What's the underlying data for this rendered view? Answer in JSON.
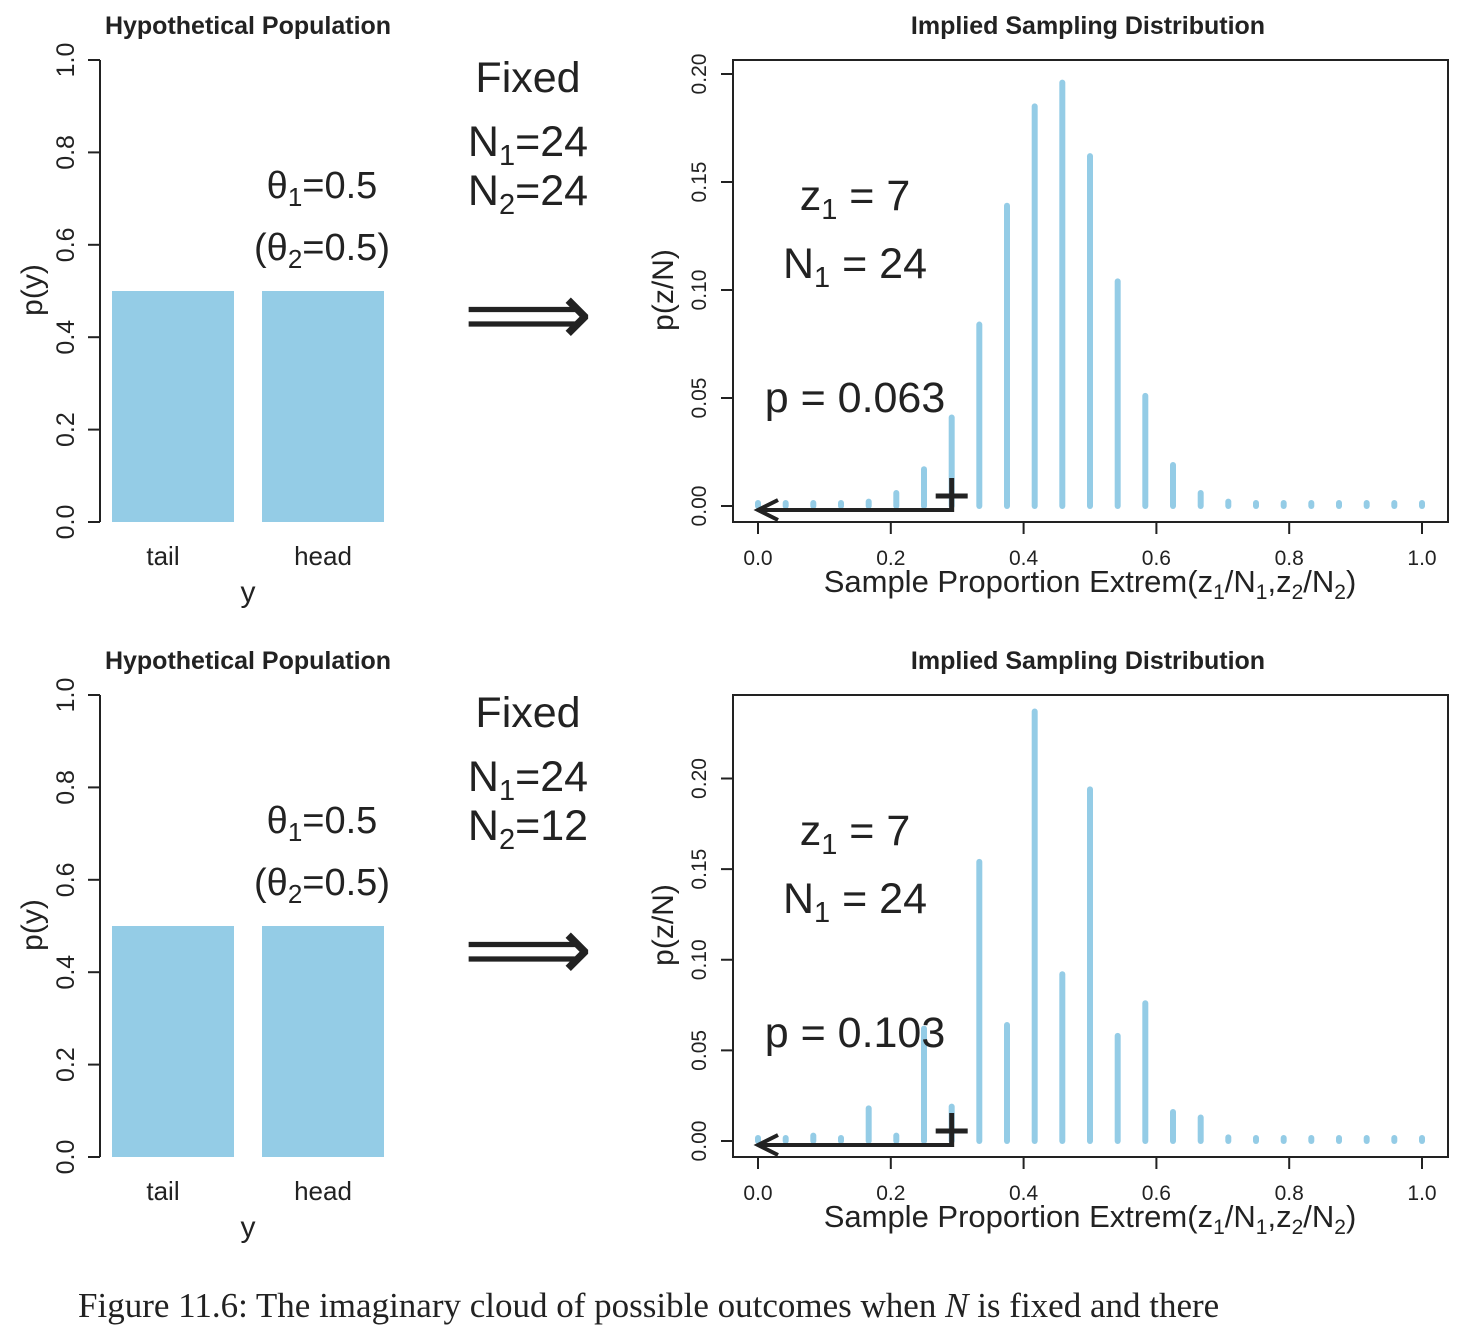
{
  "caption": {
    "prefix": "Figure 11.6:  The imaginary cloud of possible outcomes when ",
    "variable": "N",
    "suffix": " is fixed and there"
  },
  "colors": {
    "bar": "#94CCE6",
    "ink": "#222222"
  },
  "panels": [
    {
      "middle": {
        "fixed": "Fixed",
        "n1_base": "N",
        "n1_sub": "1",
        "n1_val": "=24",
        "n2_base": "N",
        "n2_sub": "2",
        "n2_val": "=24",
        "arrow": "⟹"
      },
      "annotation": {
        "z_base": "z",
        "z_sub": "1",
        "z_val": " = 7",
        "n_base": "N",
        "n_sub": "1",
        "n_val": " = 24",
        "p_text": "p = 0.063"
      }
    },
    {
      "middle": {
        "fixed": "Fixed",
        "n1_base": "N",
        "n1_sub": "1",
        "n1_val": "=24",
        "n2_base": "N",
        "n2_sub": "2",
        "n2_val": "=12",
        "arrow": "⟹"
      },
      "annotation": {
        "z_base": "z",
        "z_sub": "1",
        "z_val": " = 7",
        "n_base": "N",
        "n_sub": "1",
        "n_val": " = 24",
        "p_text": "p = 0.103"
      }
    }
  ],
  "chart_data": [
    {
      "type": "bar",
      "title": "Hypothetical Population",
      "xlabel": "y",
      "ylabel": "p(y)",
      "categories": [
        "tail",
        "head"
      ],
      "values": [
        0.5,
        0.5
      ],
      "ylim": [
        0,
        1
      ],
      "yticks": [
        "0.0",
        "0.2",
        "0.4",
        "0.6",
        "0.8",
        "1.0"
      ],
      "annotation_theta1": {
        "base": "θ",
        "sub": "1",
        "val": "=0.5"
      },
      "annotation_theta2": {
        "open": "(θ",
        "sub": "2",
        "val": "=0.5)"
      }
    },
    {
      "type": "bar",
      "title": "Implied Sampling Distribution",
      "xlabel": {
        "base": "Sample Proportion Extrem(z",
        "s1": "1",
        "m1": "/N",
        "s2": "1",
        "m2": ",z",
        "s3": "2",
        "m3": "/N",
        "s4": "2",
        "end": ")"
      },
      "ylabel": "p(z/N)",
      "xlim": [
        0,
        1
      ],
      "ylim": [
        0,
        0.2
      ],
      "xticks": [
        "0.0",
        "0.2",
        "0.4",
        "0.6",
        "0.8",
        "1.0"
      ],
      "yticks": [
        "0.00",
        "0.05",
        "0.10",
        "0.15",
        "0.20"
      ],
      "x": [
        0.0,
        0.0417,
        0.0833,
        0.125,
        0.1667,
        0.2083,
        0.25,
        0.2917,
        0.3333,
        0.375,
        0.4167,
        0.4583,
        0.5,
        0.5417,
        0.5833,
        0.625,
        0.6667,
        0.7083,
        0.75,
        0.7917,
        0.8333,
        0.875,
        0.9167,
        0.9583,
        1.0
      ],
      "values": [
        0.001,
        0.001,
        0.001,
        0.001,
        0.002,
        0.006,
        0.017,
        0.041,
        0.084,
        0.139,
        0.185,
        0.196,
        0.162,
        0.104,
        0.051,
        0.019,
        0.006,
        0.002,
        0.001,
        0.001,
        0.001,
        0.001,
        0.001,
        0.001,
        0.001
      ],
      "observed": 0.2917
    },
    {
      "type": "bar",
      "title": "Hypothetical Population",
      "xlabel": "y",
      "ylabel": "p(y)",
      "categories": [
        "tail",
        "head"
      ],
      "values": [
        0.5,
        0.5
      ],
      "ylim": [
        0,
        1
      ],
      "yticks": [
        "0.0",
        "0.2",
        "0.4",
        "0.6",
        "0.8",
        "1.0"
      ],
      "annotation_theta1": {
        "base": "θ",
        "sub": "1",
        "val": "=0.5"
      },
      "annotation_theta2": {
        "open": "(θ",
        "sub": "2",
        "val": "=0.5)"
      }
    },
    {
      "type": "bar",
      "title": "Implied Sampling Distribution",
      "xlabel": {
        "base": "Sample Proportion Extrem(z",
        "s1": "1",
        "m1": "/N",
        "s2": "1",
        "m2": ",z",
        "s3": "2",
        "m3": "/N",
        "s4": "2",
        "end": ")"
      },
      "ylabel": "p(z/N)",
      "xlim": [
        0,
        1
      ],
      "ylim": [
        0,
        0.24
      ],
      "xticks": [
        "0.0",
        "0.2",
        "0.4",
        "0.6",
        "0.8",
        "1.0"
      ],
      "yticks": [
        "0.00",
        "0.05",
        "0.10",
        "0.15",
        "0.20"
      ],
      "x": [
        0.0,
        0.0417,
        0.0833,
        0.125,
        0.1667,
        0.2083,
        0.25,
        0.2917,
        0.3333,
        0.375,
        0.4167,
        0.4583,
        0.5,
        0.5417,
        0.5833,
        0.625,
        0.6667,
        0.7083,
        0.75,
        0.7917,
        0.8333,
        0.875,
        0.9167,
        0.9583,
        1.0
      ],
      "values": [
        0.001,
        0.001,
        0.003,
        0.001,
        0.018,
        0.003,
        0.062,
        0.019,
        0.154,
        0.064,
        0.237,
        0.092,
        0.194,
        0.058,
        0.076,
        0.016,
        0.013,
        0.002,
        0.001,
        0.001,
        0.001,
        0.001,
        0.001,
        0.001,
        0.001
      ],
      "observed": 0.2917
    }
  ]
}
